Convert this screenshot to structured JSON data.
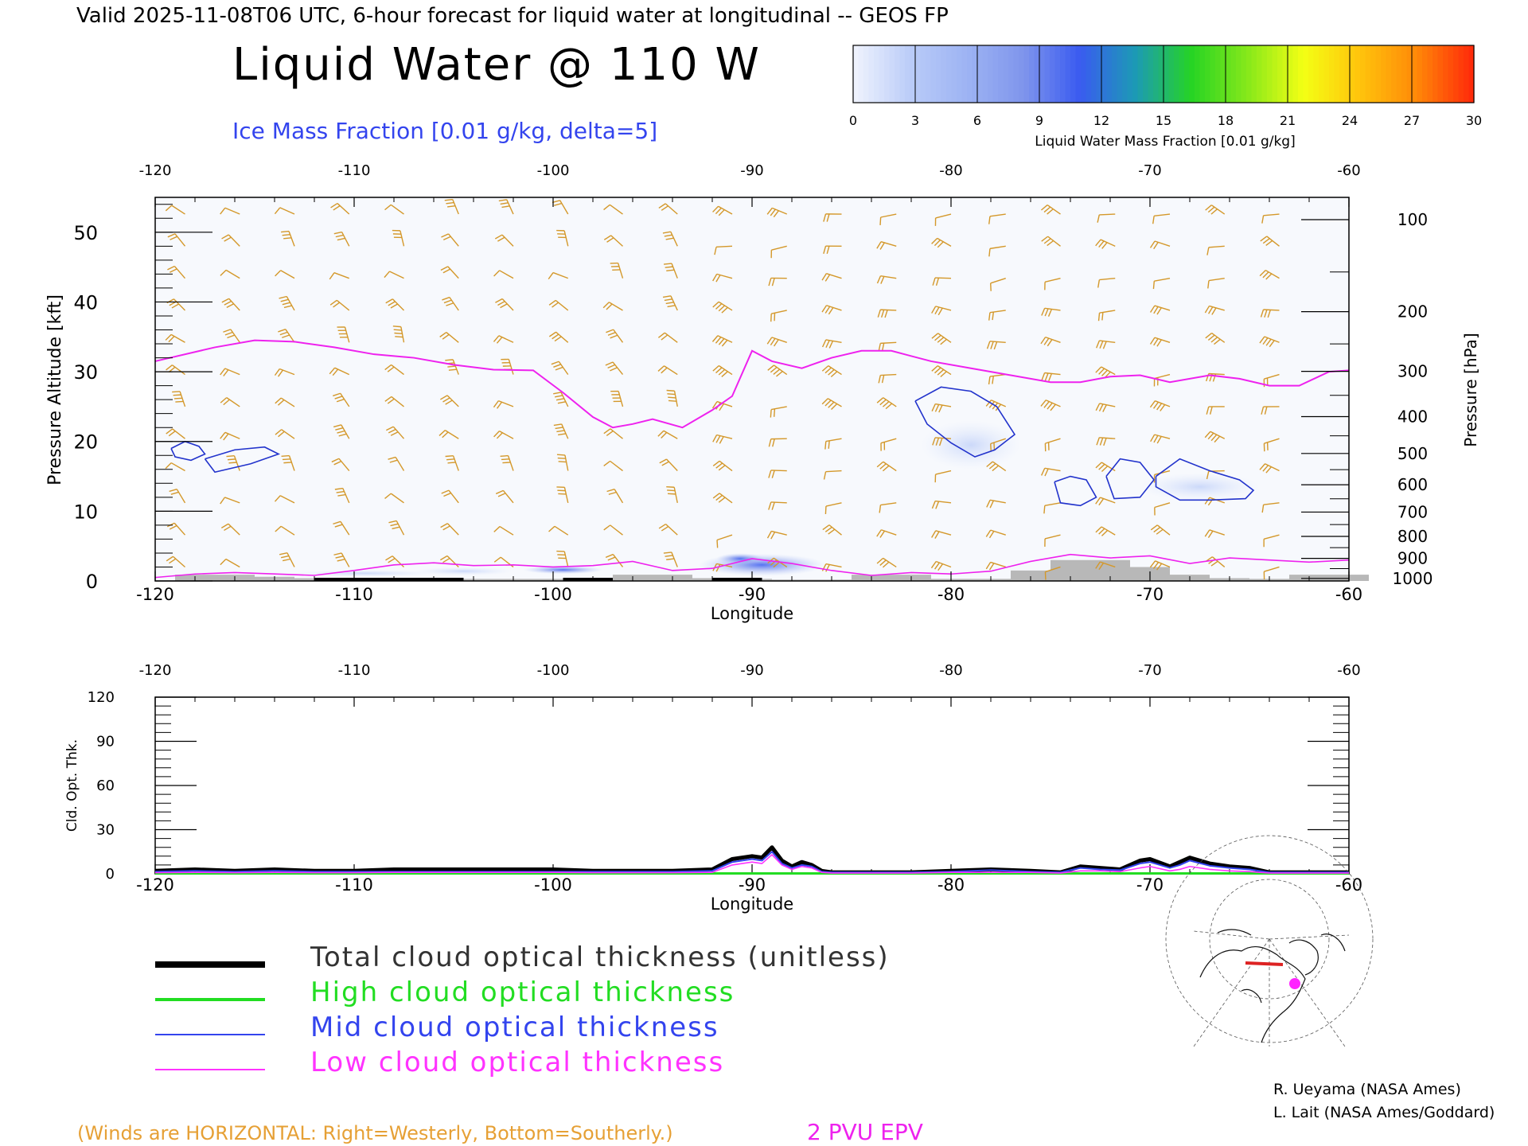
{
  "header": {
    "valid_line": "Valid 2025-11-08T06 UTC, 6-hour forecast for liquid water at longitudinal -- GEOS FP",
    "title": "Liquid Water @ 110 W",
    "subtitle": "Ice Mass Fraction [0.01 g/kg, delta=5]"
  },
  "colorbar": {
    "label": "Liquid Water Mass Fraction [0.01 g/kg]",
    "ticks": [
      "0",
      "3",
      "6",
      "9",
      "12",
      "15",
      "18",
      "21",
      "24",
      "27",
      "30"
    ],
    "colors": [
      "#eef2fd",
      "#b9cbf8",
      "#9db3f3",
      "#7f95ec",
      "#3a5bf0",
      "#1c9ab5",
      "#26d424",
      "#86e81a",
      "#f4ff14",
      "#ffc40c",
      "#ff8a08",
      "#ff2c0a"
    ]
  },
  "legend": {
    "items": [
      {
        "label": "Total cloud optical thickness (unitless)",
        "color": "#000000"
      },
      {
        "label": "High cloud optical thickness",
        "color": "#22dd22"
      },
      {
        "label": "Mid cloud optical thickness",
        "color": "#3344ee"
      },
      {
        "label": "Low cloud optical thickness",
        "color": "#ff33ff"
      }
    ]
  },
  "footer": {
    "winds_note": "(Winds are HORIZONTAL: Right=Westerly, Bottom=Southerly.)",
    "pvu_label": "2 PVU EPV",
    "credit1": "R. Ueyama (NASA Ames)",
    "credit2": "L. Lait (NASA Ames/Goddard)"
  },
  "colors": {
    "wind": "#d4982a",
    "pv": "#ee22ee",
    "ice": "#2233cc",
    "terrain": "#b8b8b8",
    "notes": "#e6a035"
  },
  "chart_data": [
    {
      "type": "heatmap",
      "name": "cross-section",
      "xlabel": "Longitude",
      "ylabel": "Pressure Altitude [kft]",
      "y2label": "Pressure [hPa]",
      "xlim": [
        -120,
        -60
      ],
      "ylim": [
        0,
        55
      ],
      "x_ticks": [
        "-120",
        "-110",
        "-100",
        "-90",
        "-80",
        "-70",
        "-60"
      ],
      "y_ticks": [
        "0",
        "10",
        "20",
        "30",
        "40",
        "50"
      ],
      "pressure_ticks": [
        "100",
        "200",
        "300",
        "400",
        "500",
        "600",
        "700",
        "800",
        "900",
        "1000"
      ],
      "pv_2pvu_line": {
        "x": [
          -120,
          -117,
          -115,
          -113,
          -111,
          -109,
          -107,
          -105,
          -103,
          -101,
          -99.5,
          -98,
          -97,
          -96,
          -95,
          -93.5,
          -92,
          -91,
          -90,
          -89,
          -87.5,
          -86,
          -84.5,
          -83,
          -81,
          -79,
          -77,
          -75,
          -73.5,
          -72,
          -70.5,
          -69,
          -67,
          -65.5,
          -64,
          -62.5,
          -61,
          -60
        ],
        "y": [
          31.5,
          33.5,
          34.5,
          34.3,
          33.5,
          32.5,
          32,
          31,
          30.3,
          30.2,
          27,
          23.5,
          22,
          22.5,
          23.2,
          22,
          24.5,
          26.5,
          33,
          31.5,
          30.5,
          32,
          33,
          33,
          31.5,
          30.5,
          29.5,
          28.5,
          28.5,
          29.3,
          29.5,
          28.5,
          29.5,
          29,
          28,
          28,
          30,
          30.2
        ]
      },
      "ice_contours": [
        {
          "x": [
            -119.2,
            -118.5,
            -117.8,
            -117.5,
            -118.2,
            -119.0,
            -119.2
          ],
          "y": [
            19.0,
            20.0,
            19.3,
            18.2,
            17.3,
            17.8,
            19.0
          ]
        },
        {
          "x": [
            -117.5,
            -116.0,
            -114.5,
            -113.8,
            -115.2,
            -117.0,
            -117.5
          ],
          "y": [
            17.5,
            18.8,
            19.2,
            18.2,
            16.8,
            15.6,
            17.5
          ]
        },
        {
          "x": [
            -81.8,
            -80.5,
            -79.0,
            -77.7,
            -76.8,
            -77.8,
            -78.8,
            -80.0,
            -81.2,
            -81.8
          ],
          "y": [
            25.8,
            27.8,
            27.2,
            25.0,
            21.0,
            18.8,
            17.8,
            19.8,
            22.5,
            25.8
          ]
        },
        {
          "x": [
            -74.8,
            -74.0,
            -73.2,
            -72.7,
            -73.5,
            -74.5,
            -74.8
          ],
          "y": [
            14.2,
            15.0,
            14.5,
            12.0,
            10.8,
            11.2,
            14.2
          ]
        },
        {
          "x": [
            -72.2,
            -71.5,
            -70.5,
            -69.8,
            -70.5,
            -71.8,
            -72.2
          ],
          "y": [
            15.0,
            17.5,
            17.0,
            14.5,
            12.0,
            11.8,
            15.0
          ]
        },
        {
          "x": [
            -69.7,
            -68.5,
            -67.0,
            -65.5,
            -64.8,
            -65.2,
            -67.0,
            -68.5,
            -69.7,
            -69.7
          ],
          "y": [
            15.0,
            17.5,
            15.8,
            14.5,
            13.0,
            11.8,
            11.6,
            11.6,
            13.5,
            15.0
          ]
        }
      ],
      "liquid_blobs": [
        {
          "x": -89.5,
          "y": 2.3,
          "rx": 3.2,
          "ry": 1.6,
          "value": 9
        },
        {
          "x": -90.6,
          "y": 3.2,
          "rx": 1.2,
          "ry": 0.8,
          "value": 12
        },
        {
          "x": -99.5,
          "y": 1.6,
          "rx": 2.0,
          "ry": 0.6,
          "value": 6
        },
        {
          "x": -104.5,
          "y": 1.4,
          "rx": 2.5,
          "ry": 0.6,
          "value": 4
        },
        {
          "x": -109.5,
          "y": 1.1,
          "rx": 3.5,
          "ry": 0.5,
          "value": 4
        },
        {
          "x": -79.0,
          "y": 19.5,
          "rx": 2.5,
          "ry": 3.5,
          "value": 2
        },
        {
          "x": -67.5,
          "y": 13.5,
          "rx": 3.0,
          "ry": 2.0,
          "value": 2
        }
      ],
      "terrain": {
        "x": [
          -118,
          -116,
          -114,
          -112,
          -110,
          -108,
          -106,
          -104,
          -102,
          -100,
          -98,
          -96,
          -94,
          -92,
          -90,
          -88,
          -86,
          -84,
          -82,
          -80,
          -78,
          -76,
          -74,
          -72,
          -70,
          -68,
          -66,
          -64,
          -62,
          -60
        ],
        "y": [
          0.9,
          0.9,
          0.6,
          0.4,
          0.3,
          0.3,
          0.3,
          0.3,
          0.3,
          0.3,
          0.4,
          0.9,
          0.9,
          0.4,
          0.3,
          0.2,
          0.2,
          0.9,
          0.9,
          0.3,
          0.3,
          1.5,
          3.0,
          3.0,
          2.0,
          0.9,
          0.4,
          0.3,
          0.9,
          0.9
        ]
      }
    },
    {
      "type": "line",
      "name": "cloud optical thickness",
      "xlabel": "Longitude",
      "ylabel": "Cld. Opt. Thk.",
      "xlim": [
        -120,
        -60
      ],
      "ylim": [
        0,
        120
      ],
      "x_ticks": [
        "-120",
        "-110",
        "-100",
        "-90",
        "-80",
        "-70",
        "-60"
      ],
      "y_ticks": [
        "0",
        "30",
        "60",
        "90",
        "120"
      ],
      "x": [
        -120,
        -118,
        -116,
        -114,
        -112,
        -110,
        -108,
        -106,
        -104,
        -102,
        -100,
        -98,
        -96,
        -94,
        -92,
        -91,
        -90,
        -89.5,
        -89,
        -88.5,
        -88,
        -87.5,
        -87,
        -86.5,
        -86,
        -84,
        -82,
        -80,
        -78,
        -76,
        -74.5,
        -73.5,
        -72.5,
        -71.5,
        -70.5,
        -70,
        -69,
        -68.5,
        -68,
        -67,
        -66,
        -65,
        -64,
        -62,
        -60
      ],
      "series": [
        {
          "name": "Total cloud optical thickness (unitless)",
          "values": [
            2,
            3,
            2,
            3,
            2,
            2,
            3,
            3,
            3,
            3,
            3,
            2,
            2,
            2,
            3,
            10,
            12,
            11,
            18,
            9,
            5,
            8,
            6,
            2,
            1,
            1,
            1,
            2,
            3,
            2,
            1,
            5,
            4,
            3,
            9,
            10,
            5,
            8,
            11,
            7,
            5,
            4,
            1,
            1,
            1
          ]
        },
        {
          "name": "High cloud optical thickness",
          "values": [
            0.3,
            0.3,
            0.3,
            0.3,
            0.3,
            0.3,
            0.3,
            0.3,
            0.3,
            0.3,
            0.3,
            0.3,
            0.3,
            0.3,
            0.3,
            0.3,
            0.3,
            0.3,
            0.3,
            0.3,
            0.3,
            0.3,
            0.3,
            0.3,
            0.3,
            0.3,
            0.3,
            0.3,
            0.3,
            0.3,
            0.3,
            0.3,
            0.3,
            0.3,
            0.3,
            0.3,
            0.3,
            0.3,
            0.3,
            0.3,
            0.3,
            0.3,
            0.3,
            0.3,
            0.3
          ]
        },
        {
          "name": "Mid cloud optical thickness",
          "values": [
            1.5,
            2,
            1.5,
            2,
            1.5,
            1.5,
            1.5,
            1.5,
            1.5,
            1.5,
            1.5,
            1.5,
            1.5,
            1.5,
            2,
            8,
            10,
            9,
            15,
            7,
            4,
            6,
            5,
            1.5,
            1,
            1,
            1,
            1.5,
            2.5,
            1.5,
            1,
            4,
            3,
            2.5,
            7,
            8,
            4,
            6,
            9,
            5.5,
            4,
            3,
            1,
            1,
            1
          ]
        },
        {
          "name": "Low cloud optical thickness",
          "values": [
            0.8,
            1,
            0.8,
            1,
            0.8,
            0.8,
            1,
            1,
            1,
            1,
            1,
            0.8,
            0.8,
            0.8,
            1,
            6,
            8,
            7,
            13,
            6,
            3,
            5,
            4,
            1,
            0.5,
            0.5,
            0.5,
            1,
            1,
            1,
            0.5,
            2,
            2,
            1.5,
            4,
            5,
            2,
            3,
            5,
            3,
            2,
            1.5,
            0.5,
            0.5,
            0.5
          ]
        }
      ]
    }
  ]
}
